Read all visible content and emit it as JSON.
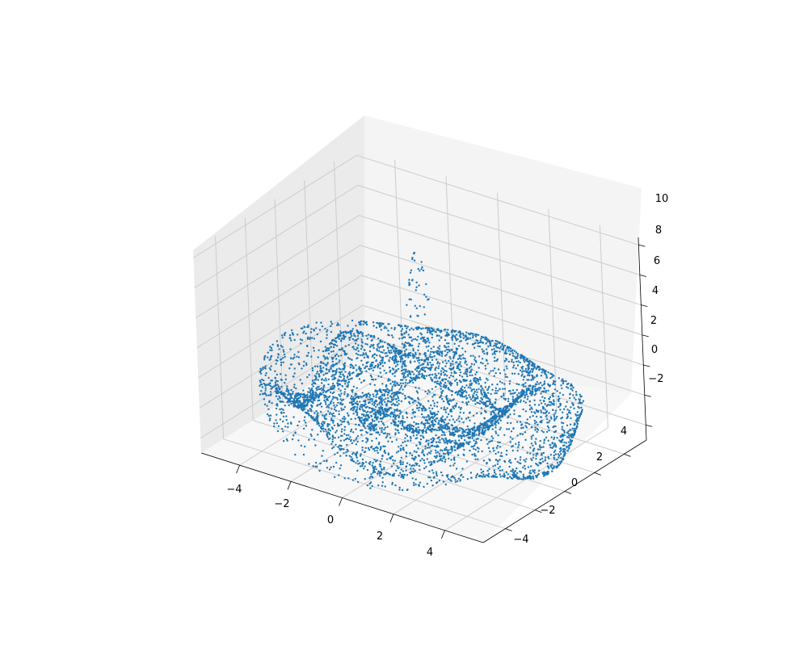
{
  "chart_data": {
    "type": "scatter",
    "title": "",
    "xlabel": "",
    "ylabel": "",
    "zlabel": "",
    "xlim": [
      -5.5,
      5.5
    ],
    "ylim": [
      -5.5,
      5.5
    ],
    "zlim": [
      -3,
      10.5
    ],
    "x_ticks": [
      -4,
      -2,
      0,
      2,
      4
    ],
    "y_ticks": [
      -4,
      -2,
      0,
      2,
      4
    ],
    "z_ticks": [
      -2,
      0,
      2,
      4,
      6,
      8,
      10
    ],
    "x_tick_labels": [
      "−4",
      "−2",
      "0",
      "2",
      "4"
    ],
    "y_tick_labels": [
      "−4",
      "−2",
      "0",
      "2",
      "4"
    ],
    "z_tick_labels": [
      "−2",
      "0",
      "2",
      "4",
      "6",
      "8",
      "10"
    ],
    "grid": true,
    "point_color": "#1f77b4",
    "surface": {
      "description": "point cloud sampled from z = cos(x^2+y^2 ... ) ripple on a disk with a central peak",
      "radius_range": [
        0,
        5.5
      ],
      "central_peak_z": 10,
      "ring_z_range": [
        -2.5,
        2
      ]
    }
  }
}
